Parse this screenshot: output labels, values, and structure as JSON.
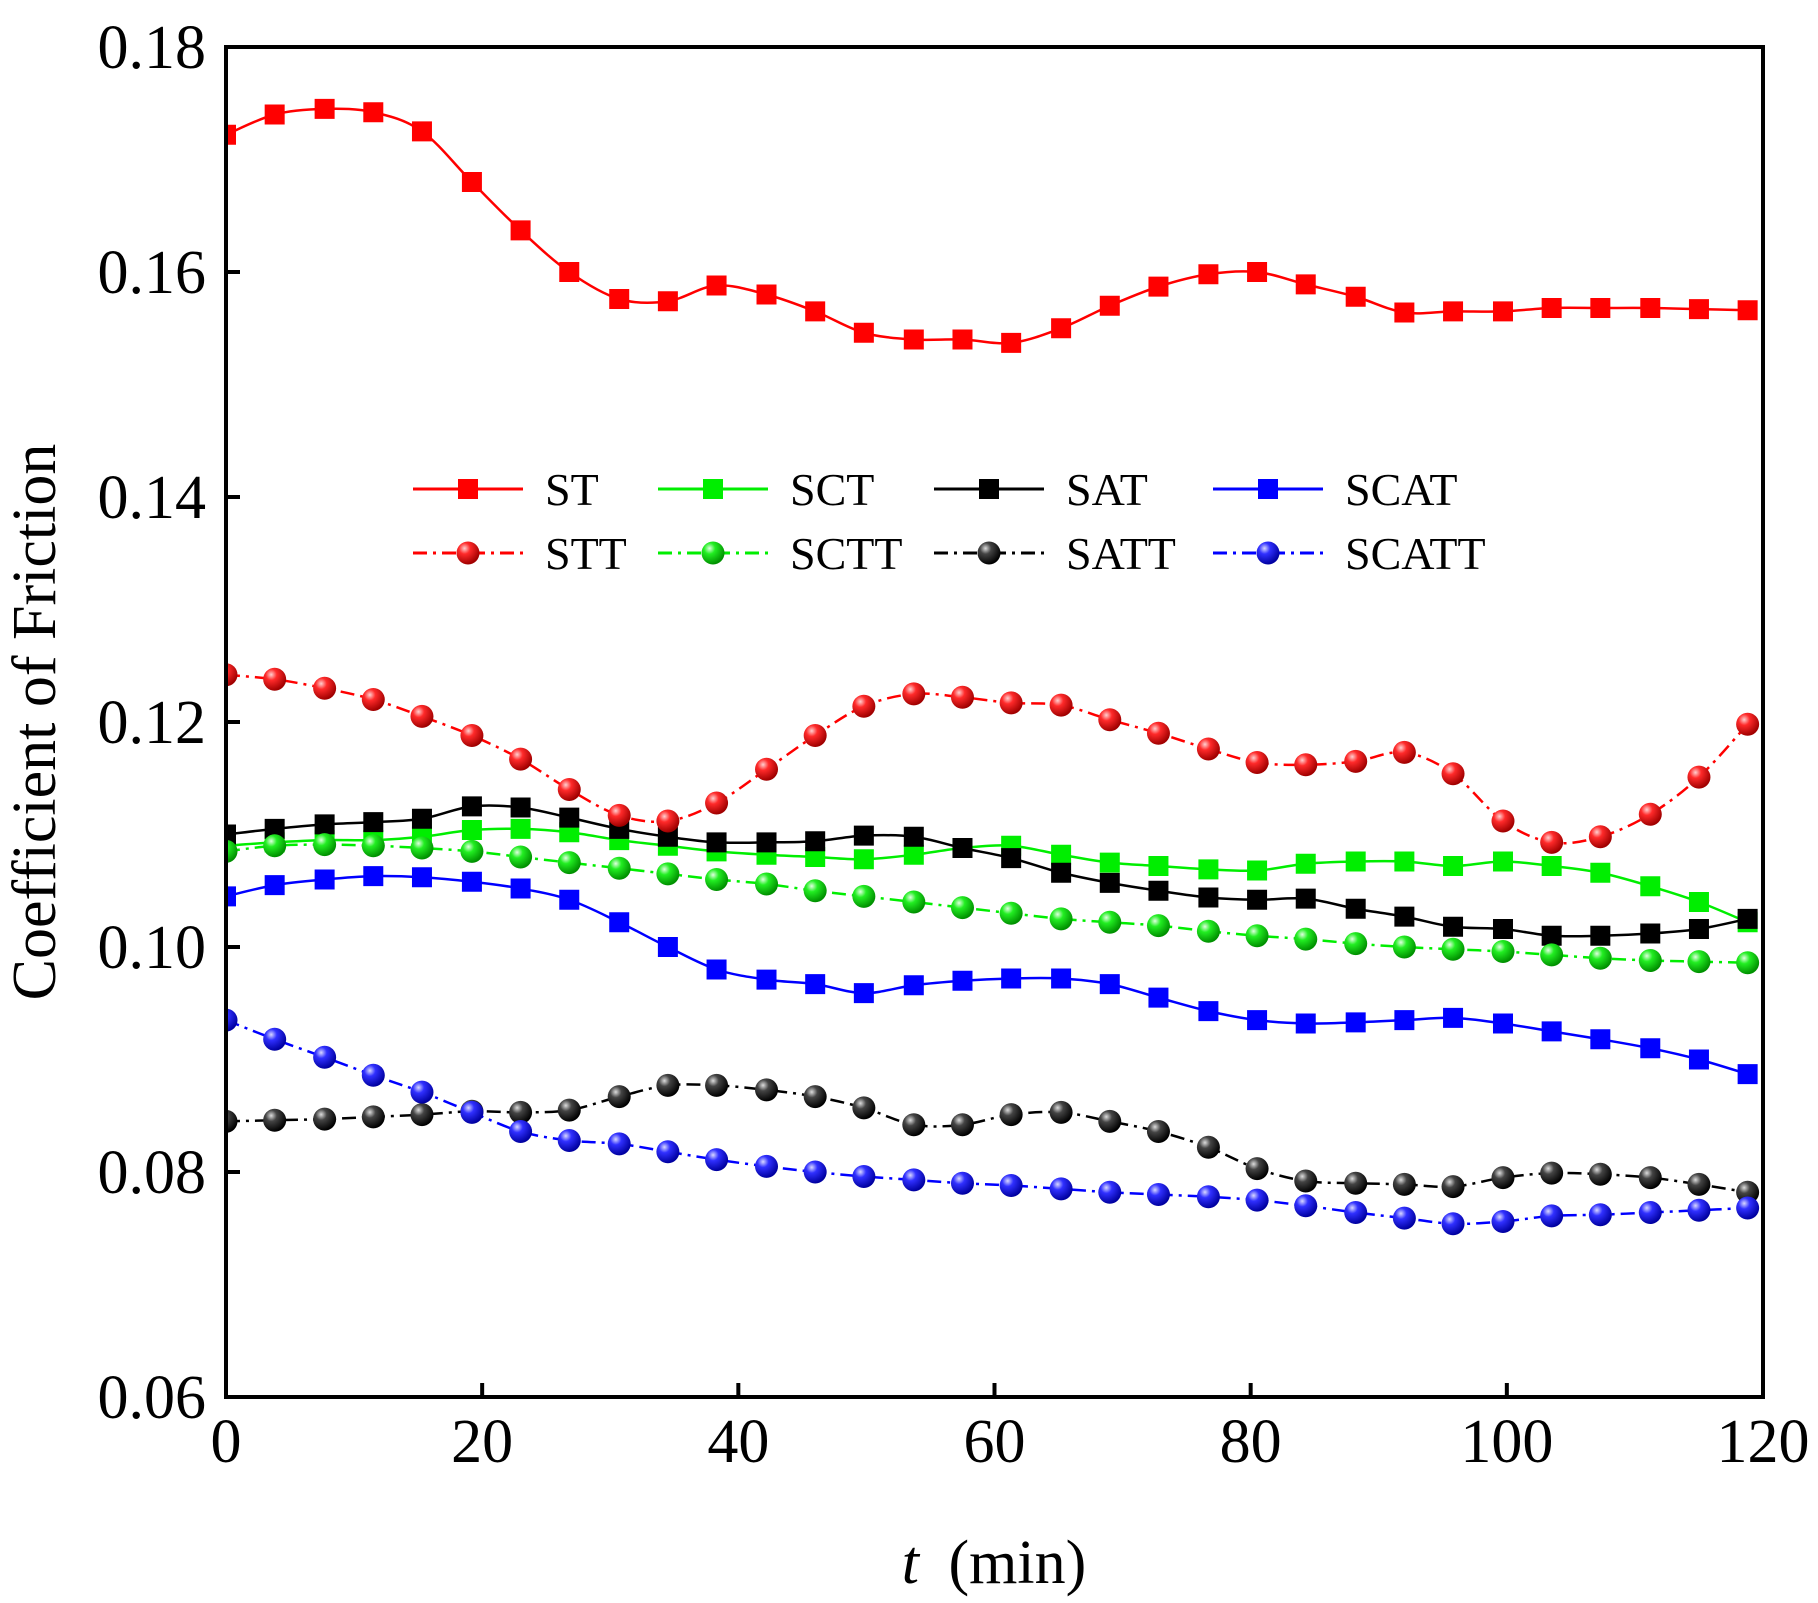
{
  "chart_data": {
    "type": "line",
    "title": "",
    "xlabel_italic": "t",
    "xlabel_unit": "(min)",
    "ylabel": "Coefficient of Friction",
    "xlim": [
      0,
      120
    ],
    "ylim": [
      0.06,
      0.18
    ],
    "xticks": [
      0,
      20,
      40,
      60,
      80,
      100,
      120
    ],
    "xtick_labels": [
      "0",
      "20",
      "40",
      "60",
      "80",
      "100",
      "120"
    ],
    "yticks": [
      0.06,
      0.08,
      0.1,
      0.12,
      0.14,
      0.16,
      0.18
    ],
    "ytick_labels": [
      "0.06",
      "0.08",
      "0.10",
      "0.12",
      "0.14",
      "0.16",
      "0.18"
    ],
    "grid": false,
    "legend_position": "upper-middle",
    "x": [
      0,
      3.8,
      7.7,
      11.5,
      15.3,
      19.2,
      23,
      26.8,
      30.7,
      34.5,
      38.3,
      42.2,
      46,
      49.8,
      53.7,
      57.5,
      61.3,
      65.2,
      69,
      72.8,
      76.7,
      80.5,
      84.3,
      88.2,
      92,
      95.8,
      99.7,
      103.5,
      107.3,
      111.2,
      115,
      118.8
    ],
    "series": [
      {
        "name": "ST",
        "color": "#ff0000",
        "marker": "square",
        "dash": "solid",
        "values": [
          0.1722,
          0.174,
          0.1745,
          0.1742,
          0.1725,
          0.168,
          0.1637,
          0.16,
          0.1576,
          0.1574,
          0.1588,
          0.158,
          0.1565,
          0.1546,
          0.154,
          0.154,
          0.1537,
          0.155,
          0.157,
          0.1587,
          0.1598,
          0.16,
          0.1589,
          0.1578,
          0.1564,
          0.1565,
          0.1565,
          0.1568,
          0.1568,
          0.1568,
          0.1567,
          0.1566
        ]
      },
      {
        "name": "SCT",
        "color": "#00ee00",
        "marker": "square",
        "dash": "solid",
        "values": [
          0.109,
          0.1093,
          0.1095,
          0.1095,
          0.1098,
          0.1104,
          0.1105,
          0.1102,
          0.1095,
          0.109,
          0.1085,
          0.1082,
          0.108,
          0.1078,
          0.1082,
          0.1088,
          0.109,
          0.1082,
          0.1075,
          0.1072,
          0.1069,
          0.1068,
          0.1074,
          0.1076,
          0.1076,
          0.1072,
          0.1076,
          0.1072,
          0.1066,
          0.1054,
          0.104,
          0.1022
        ]
      },
      {
        "name": "SAT",
        "color": "#000000",
        "marker": "square",
        "dash": "solid",
        "values": [
          0.11,
          0.1105,
          0.1109,
          0.1111,
          0.1114,
          0.1125,
          0.1124,
          0.1115,
          0.1105,
          0.1098,
          0.1093,
          0.1093,
          0.1094,
          0.1099,
          0.1098,
          0.1088,
          0.1079,
          0.1066,
          0.1057,
          0.105,
          0.1044,
          0.1042,
          0.1043,
          0.1034,
          0.1027,
          0.1018,
          0.1016,
          0.101,
          0.101,
          0.1012,
          0.1016,
          0.1025
        ]
      },
      {
        "name": "SCAT",
        "color": "#0000ff",
        "marker": "square",
        "dash": "solid",
        "values": [
          0.1045,
          0.1055,
          0.106,
          0.1063,
          0.1062,
          0.1058,
          0.1052,
          0.1042,
          0.1022,
          0.1,
          0.098,
          0.0971,
          0.0967,
          0.0959,
          0.0966,
          0.097,
          0.0972,
          0.0972,
          0.0967,
          0.0955,
          0.0943,
          0.0935,
          0.0932,
          0.0933,
          0.0935,
          0.0937,
          0.0932,
          0.0925,
          0.0918,
          0.091,
          0.09,
          0.0887
        ]
      },
      {
        "name": "STT",
        "color": "#ff0000",
        "marker": "circle",
        "dash": "dashdot",
        "values": [
          0.1242,
          0.1238,
          0.123,
          0.122,
          0.1205,
          0.1188,
          0.1167,
          0.114,
          0.1117,
          0.1112,
          0.1128,
          0.1158,
          0.1188,
          0.1214,
          0.1225,
          0.1222,
          0.1217,
          0.1215,
          0.1202,
          0.119,
          0.1176,
          0.1164,
          0.1162,
          0.1165,
          0.1173,
          0.1154,
          0.1112,
          0.1093,
          0.1098,
          0.1118,
          0.1151,
          0.1198
        ]
      },
      {
        "name": "SCTT",
        "color": "#00ee00",
        "marker": "circle",
        "dash": "dashdot",
        "values": [
          0.1085,
          0.109,
          0.1091,
          0.109,
          0.1088,
          0.1085,
          0.108,
          0.1075,
          0.107,
          0.1065,
          0.106,
          0.1056,
          0.105,
          0.1045,
          0.104,
          0.1035,
          0.103,
          0.1025,
          0.1022,
          0.1019,
          0.1014,
          0.101,
          0.1007,
          0.1003,
          0.1,
          0.0998,
          0.0996,
          0.0993,
          0.099,
          0.0988,
          0.0987,
          0.0986
        ]
      },
      {
        "name": "SATT",
        "color": "#000000",
        "marker": "circle",
        "dash": "dashdot",
        "values": [
          0.0845,
          0.0846,
          0.0847,
          0.0849,
          0.0851,
          0.0854,
          0.0853,
          0.0855,
          0.0867,
          0.0877,
          0.0877,
          0.0873,
          0.0867,
          0.0857,
          0.0842,
          0.0842,
          0.0851,
          0.0853,
          0.0845,
          0.0836,
          0.0822,
          0.0803,
          0.0792,
          0.079,
          0.0789,
          0.0787,
          0.0795,
          0.0799,
          0.0798,
          0.0795,
          0.0789,
          0.0782
        ]
      },
      {
        "name": "SCATT",
        "color": "#0000ff",
        "marker": "circle",
        "dash": "dashdot",
        "values": [
          0.0935,
          0.0918,
          0.0902,
          0.0886,
          0.0871,
          0.0853,
          0.0836,
          0.0828,
          0.0825,
          0.0818,
          0.0811,
          0.0805,
          0.08,
          0.0796,
          0.0793,
          0.079,
          0.0788,
          0.0785,
          0.0782,
          0.078,
          0.0778,
          0.0775,
          0.077,
          0.0764,
          0.0759,
          0.0754,
          0.0756,
          0.0761,
          0.0762,
          0.0764,
          0.0766,
          0.0768
        ]
      }
    ]
  }
}
